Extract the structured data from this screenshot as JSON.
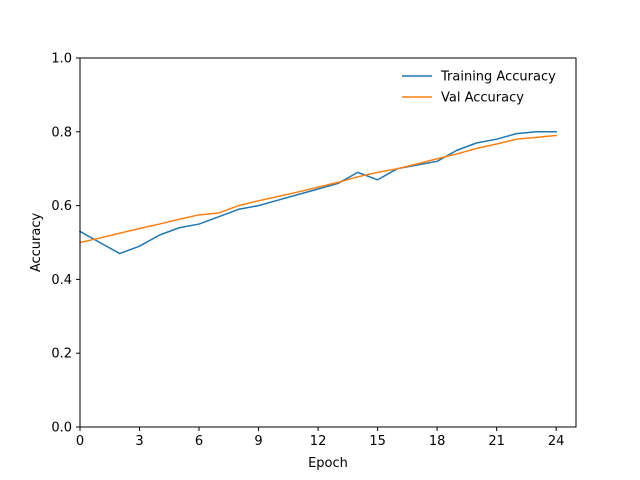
{
  "chart_data": {
    "type": "line",
    "title": "",
    "xlabel": "Epoch",
    "ylabel": "Accuracy",
    "xlim": [
      0,
      25
    ],
    "ylim": [
      0,
      1.0
    ],
    "xticks": [
      0,
      3,
      6,
      9,
      12,
      15,
      18,
      21,
      24
    ],
    "yticks": [
      0.0,
      0.2,
      0.4,
      0.6,
      0.8,
      1.0
    ],
    "ytick_labels": [
      "0.0",
      "0.2",
      "0.4",
      "0.6",
      "0.8",
      "1.0"
    ],
    "grid": false,
    "legend_position": "top-right",
    "x": [
      0,
      1,
      2,
      3,
      4,
      5,
      6,
      7,
      8,
      9,
      10,
      11,
      12,
      13,
      14,
      15,
      16,
      17,
      18,
      19,
      20,
      21,
      22,
      23,
      24
    ],
    "series": [
      {
        "name": "Training Accuracy",
        "color": "#1f77b4",
        "values": [
          0.53,
          0.5,
          0.47,
          0.49,
          0.52,
          0.54,
          0.55,
          0.57,
          0.59,
          0.6,
          0.615,
          0.63,
          0.645,
          0.66,
          0.69,
          0.67,
          0.7,
          0.71,
          0.72,
          0.75,
          0.77,
          0.78,
          0.795,
          0.8,
          0.8
        ]
      },
      {
        "name": "Val Accuracy",
        "color": "#ff7f0e",
        "values": [
          0.5,
          0.512,
          0.525,
          0.538,
          0.55,
          0.563,
          0.575,
          0.58,
          0.6,
          0.613,
          0.625,
          0.637,
          0.65,
          0.663,
          0.678,
          0.69,
          0.7,
          0.713,
          0.727,
          0.74,
          0.755,
          0.767,
          0.78,
          0.785,
          0.79
        ]
      }
    ]
  }
}
